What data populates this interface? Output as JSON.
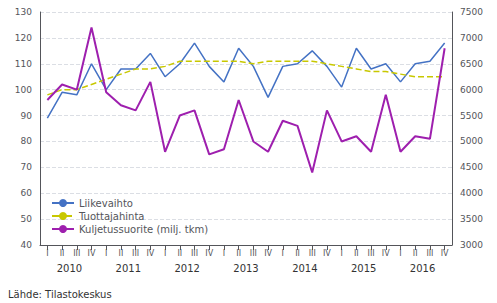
{
  "chart_data": {
    "type": "line",
    "categories": [
      "I",
      "II",
      "III",
      "IV",
      "I",
      "II",
      "III",
      "IV",
      "I",
      "II",
      "III",
      "IV",
      "I",
      "II",
      "III",
      "IV",
      "I",
      "II",
      "III",
      "IV",
      "I",
      "II",
      "III",
      "IV",
      "I",
      "II",
      "III",
      "IV"
    ],
    "series": [
      {
        "name": "Liikevaihto",
        "color": "#4472C4",
        "line_style": "solid",
        "values": [
          89,
          99,
          98,
          110,
          100,
          108,
          108,
          114,
          105,
          110,
          118,
          109,
          103,
          116,
          109,
          97,
          109,
          110,
          115,
          109,
          101,
          116,
          108,
          110,
          103,
          110,
          111,
          118
        ]
      },
      {
        "name": "Tuottajahinta",
        "color": "#C8C800",
        "line_style": "dashed",
        "values": [
          98,
          100,
          100,
          102,
          104,
          106,
          108,
          108,
          109,
          111,
          111,
          111,
          111,
          111,
          110,
          111,
          111,
          111,
          111,
          110,
          109,
          108,
          107,
          107,
          106,
          105,
          105,
          105
        ]
      },
      {
        "name": "Kuljetussuorite (milj. tkm)",
        "color": "#9E1FAE",
        "line_style": "solid",
        "axis": "y2",
        "values": [
          5800,
          6100,
          6000,
          7200,
          5950,
          5700,
          5600,
          6150,
          4800,
          5500,
          5600,
          4750,
          4850,
          5800,
          5000,
          4800,
          5400,
          5300,
          4400,
          5600,
          5000,
          5100,
          4800,
          5900,
          4800,
          5100,
          5050,
          6800
        ]
      }
    ],
    "ylim": [
      40,
      130
    ],
    "yticks": [
      40,
      50,
      60,
      70,
      80,
      90,
      100,
      110,
      120,
      130
    ],
    "y2lim": [
      3000,
      7500
    ],
    "y2ticks": [
      3000,
      3500,
      4000,
      4500,
      5000,
      5500,
      6000,
      6500,
      7000,
      7500
    ],
    "annotations": [
      "2010",
      "2011",
      "2012",
      "2013",
      "2014",
      "2015",
      "2016"
    ],
    "source": "Lähde: Tilastokeskus",
    "grid": true,
    "legend": "lower left"
  }
}
